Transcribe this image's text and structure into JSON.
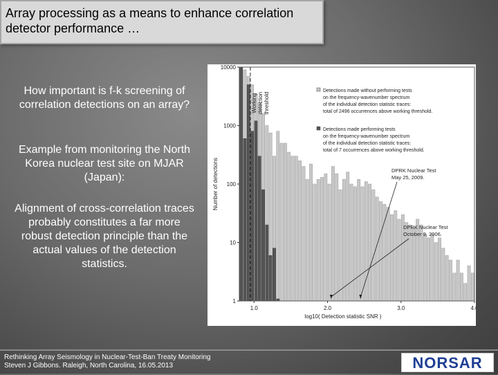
{
  "slide": {
    "title_line1": "Array processing as a means to enhance correlation",
    "title_line2": "detector performance …",
    "paragraphs": [
      "How important is f-k screening of correlation detections on an array?",
      "Example from monitoring the North Korea nuclear test site on MJAR (Japan):",
      "Alignment of cross-correlation traces probably constitutes a far more robust detection principle than the actual values of the detection statistics."
    ],
    "footer_line1": "Rethinking Array Seismology in Nuclear-Test-Ban Treaty Monitoring",
    "footer_line2": "Steven J Gibbons. Raleigh, North Carolina, 16.05.2013",
    "logo_text": "NORSAR",
    "colors": {
      "logo_blue": "#1f3f94",
      "title_bg": "#d9d9d9"
    }
  },
  "chart_data": {
    "type": "bar",
    "scale_y": "log",
    "xlabel": "log10( Detection statistic SNR )",
    "ylabel": "Number of detections",
    "xlim": [
      0.8,
      4.0
    ],
    "ylim": [
      1,
      10000
    ],
    "x_ticks": [
      {
        "value": 1.0,
        "label": "1.0"
      },
      {
        "value": 2.0,
        "label": "2.0"
      },
      {
        "value": 3.0,
        "label": "3.0"
      },
      {
        "value": 4.0,
        "label": "4.0"
      }
    ],
    "y_ticks": [
      {
        "value": 1,
        "label": "1"
      },
      {
        "value": 10,
        "label": "10"
      },
      {
        "value": 100,
        "label": "100"
      },
      {
        "value": 1000,
        "label": "1000"
      },
      {
        "value": 10000,
        "label": "10000"
      }
    ],
    "bin_width": 0.05,
    "bin_start": 0.8,
    "series": [
      {
        "color": "#c8c8c8",
        "values": [
          12000,
          9000,
          7000,
          5000,
          3500,
          2500,
          1600,
          1000,
          750,
          300,
          800,
          500,
          500,
          350,
          300,
          300,
          250,
          200,
          120,
          220,
          100,
          120,
          130,
          150,
          100,
          200,
          150,
          80,
          120,
          160,
          100,
          90,
          120,
          90,
          110,
          100,
          80,
          60,
          50,
          45,
          40,
          30,
          35,
          25,
          30,
          22,
          20,
          18,
          25,
          20,
          14,
          12,
          14,
          10,
          12,
          8,
          6,
          5,
          3,
          5,
          3,
          2,
          4,
          3
        ]
      },
      {
        "color": "#555555",
        "values": [
          10000,
          600,
          5000,
          800,
          1200,
          300,
          80,
          20,
          6,
          8,
          1,
          0,
          0,
          0,
          0,
          0,
          0,
          0,
          0,
          0,
          0,
          0,
          0,
          0,
          0,
          0,
          0,
          0,
          0,
          0,
          0,
          0,
          0,
          0,
          0,
          0,
          0,
          0,
          0,
          0,
          0,
          0,
          0,
          0,
          0,
          0,
          0,
          0,
          0,
          0,
          0,
          0,
          0,
          0,
          0,
          0,
          0,
          0,
          0,
          0,
          0,
          0,
          0,
          0
        ]
      }
    ],
    "threshold": {
      "x": 0.95,
      "label_lines": [
        "Working",
        "detection",
        "threshold"
      ]
    },
    "legend": [
      {
        "color": "#c8c8c8",
        "lines": [
          "Detections made without performing tests",
          "on the frequency-wavenumber spectrum",
          "of the individual detection statistic traces:",
          "total of 2496 occurrences above working threshold."
        ]
      },
      {
        "color": "#555555",
        "lines": [
          "Detections made performing tests",
          "on the frequency-wavenumber spectrum",
          "of the individual detection statistic traces:",
          "total of 7 occurrences above working threshold."
        ]
      }
    ],
    "annotations": [
      {
        "lines": [
          "DPRK Nuclear Test",
          "May 25, 2009."
        ],
        "point_x": 2.45
      },
      {
        "lines": [
          "DPRK Nuclear Test",
          "October 9, 2006."
        ],
        "point_x": 2.05
      }
    ]
  }
}
